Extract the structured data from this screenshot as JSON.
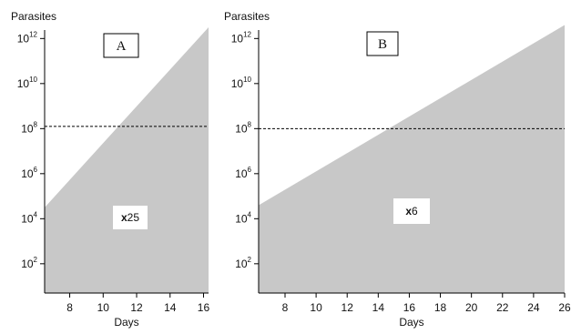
{
  "chart_data": [
    {
      "type": "area",
      "panel_label": "A",
      "ylabel": "Parasites",
      "xlabel": "Days",
      "y_scale": "log10",
      "ylim_exp": [
        0.7,
        12.7
      ],
      "xlim": [
        6.5,
        16.3
      ],
      "x_ticks": [
        8,
        10,
        12,
        14,
        16
      ],
      "y_tick_exponents": [
        2,
        4,
        6,
        8,
        10,
        12
      ],
      "series": [
        {
          "x": [
            6.5,
            16.3
          ],
          "log10_y": [
            4.5,
            12.5
          ]
        }
      ],
      "threshold_log10": 8.1,
      "annotation_prefix": "x",
      "annotation_value": "25",
      "fill_color": "#c8c8c8"
    },
    {
      "type": "area",
      "panel_label": "B",
      "ylabel": "Parasites",
      "xlabel": "Days",
      "y_scale": "log10",
      "ylim_exp": [
        0.7,
        12.7
      ],
      "xlim": [
        6.3,
        26
      ],
      "x_ticks": [
        8,
        10,
        12,
        14,
        16,
        18,
        20,
        22,
        24,
        26
      ],
      "y_tick_exponents": [
        2,
        4,
        6,
        8,
        10,
        12
      ],
      "series": [
        {
          "x": [
            6.3,
            26
          ],
          "log10_y": [
            4.6,
            12.6
          ]
        }
      ],
      "threshold_log10": 8.0,
      "annotation_prefix": "x",
      "annotation_value": "6",
      "fill_color": "#c8c8c8"
    }
  ]
}
